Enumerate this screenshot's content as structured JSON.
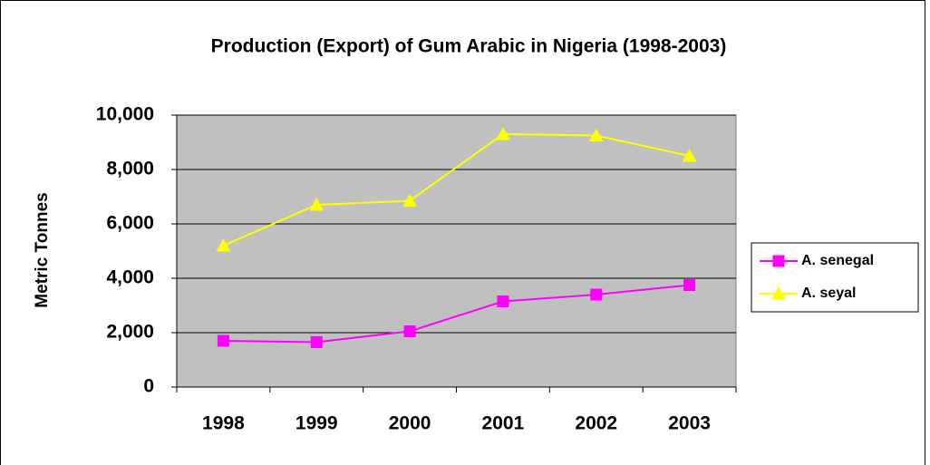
{
  "chart_data": {
    "type": "line",
    "title": "Production (Export) of Gum Arabic in Nigeria (1998-2003)",
    "y_label": "Metric Tonnes",
    "categories": [
      "1998",
      "1999",
      "2000",
      "2001",
      "2002",
      "2003"
    ],
    "series": [
      {
        "name": "A. senegal",
        "color": "#ff00ff",
        "marker": "square",
        "values": [
          1700,
          1650,
          2050,
          3150,
          3400,
          3750
        ]
      },
      {
        "name": "A. seyal",
        "color": "#ffff00",
        "marker": "triangle",
        "values": [
          5200,
          6700,
          6850,
          9300,
          9250,
          8500
        ]
      }
    ],
    "ylim": [
      0,
      10000
    ],
    "yticks": [
      0,
      {
        "value": 2000,
        "label": "2,000"
      },
      {
        "value": 4000,
        "label": "4,000"
      },
      {
        "value": 6000,
        "label": "6,000"
      },
      {
        "value": 8000,
        "label": "8,000"
      },
      {
        "value": 10000,
        "label": "10,000"
      }
    ],
    "grid": true,
    "legend": "right"
  }
}
